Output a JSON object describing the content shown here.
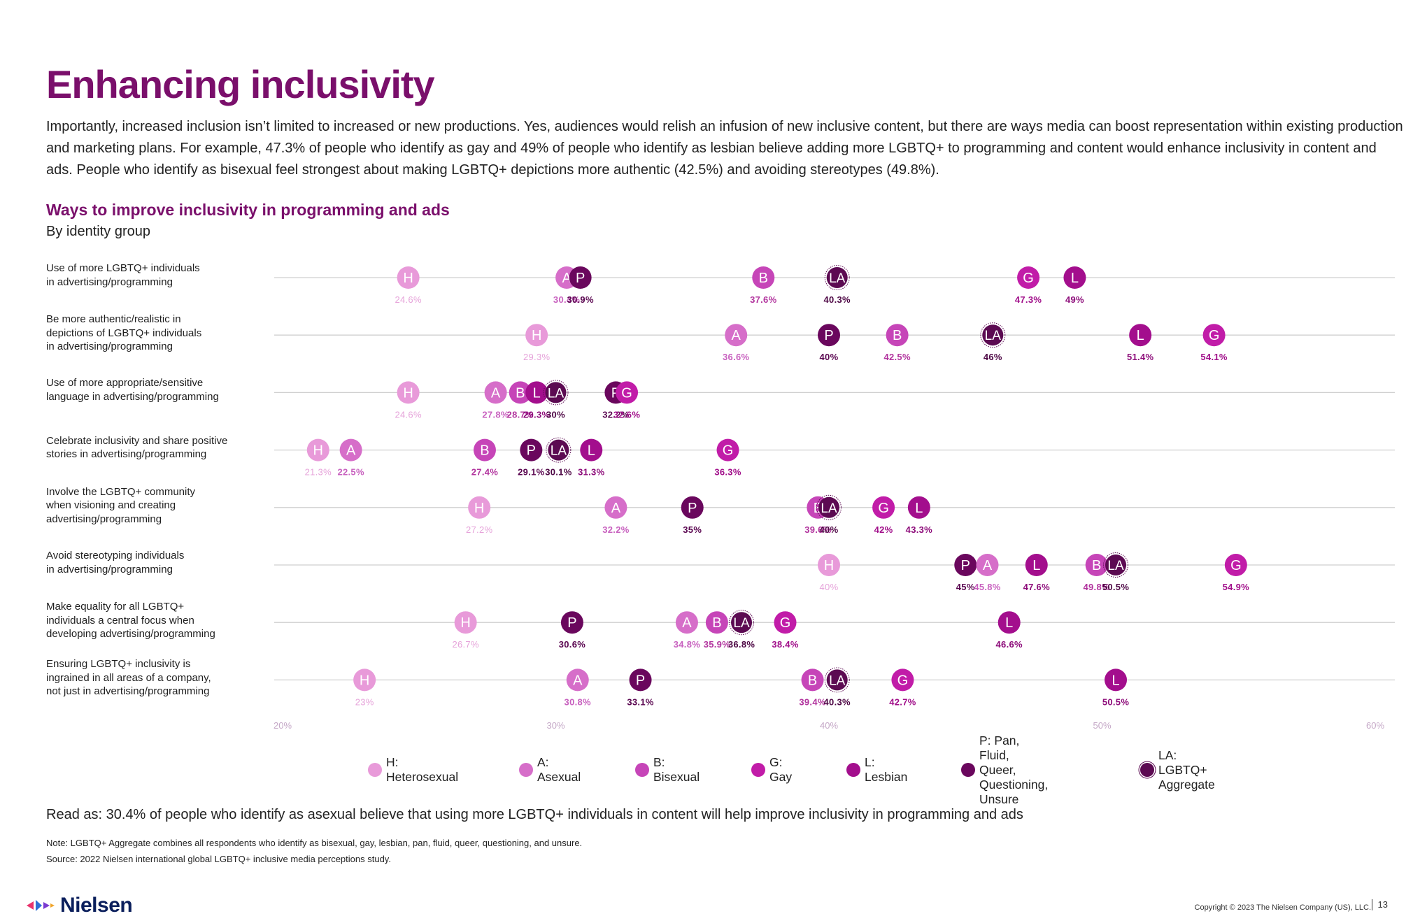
{
  "title": "Enhancing inclusivity",
  "intro": "Importantly, increased inclusion isn’t limited to increased or new productions. Yes, audiences would relish an infusion of new inclusive content, but there are ways media can boost representation within existing production and marketing plans. For example, 47.3% of people who identify as gay and 49% of people who identify as lesbian believe adding more LGBTQ+ to programming and content would enhance inclusivity in content and ads. People who identify as bisexual feel strongest about making LGBTQ+ depictions more authentic (42.5%) and avoiding stereotypes (49.8%).",
  "chart_title": "Ways to improve inclusivity in programming and ads",
  "chart_subtitle": "By identity group",
  "chart_data": {
    "type": "scatter",
    "title": "Ways to improve inclusivity in programming and ads",
    "subtitle": "By identity group",
    "xlim": [
      20,
      60
    ],
    "x_ticks": [
      "20%",
      "30%",
      "40%",
      "50%",
      "60%"
    ],
    "x_tick_values": [
      20,
      30,
      40,
      50,
      60
    ],
    "groups": [
      {
        "code": "H",
        "name": "Heterosexual",
        "legend": "H: Heterosexual",
        "color": "#e89ad9",
        "text": "#e6a3da"
      },
      {
        "code": "A",
        "name": "Asexual",
        "legend": "A: Asexual",
        "color": "#d66ec9",
        "text": "#c861bf"
      },
      {
        "code": "B",
        "name": "Bisexual",
        "legend": "B: Bisexual",
        "color": "#c645b8",
        "text": "#b2349e"
      },
      {
        "code": "G",
        "name": "Gay",
        "legend": "G: Gay",
        "color": "#c11ca8",
        "text": "#a10f8a"
      },
      {
        "code": "L",
        "name": "Lesbian",
        "legend": "L: Lesbian",
        "color": "#a30e8d",
        "text": "#8d0c7a"
      },
      {
        "code": "P",
        "name": "Pan, Fluid, Queer, Questioning, Unsure",
        "legend": "P: Pan, Fluid, Queer,\nQuestioning, Unsure",
        "color": "#6a075d",
        "text": "#5a0650"
      },
      {
        "code": "LA",
        "name": "LGBTQ+ Aggregate",
        "legend": "LA: LGBTQ+ Aggregate",
        "color": "#5c0a52",
        "text": "#4e0845"
      }
    ],
    "rows": [
      {
        "label": "Use of more LGBTQ+ individuals\nin advertising/programming",
        "points": [
          {
            "g": "H",
            "v": 24.6,
            "label": "24.6%"
          },
          {
            "g": "A",
            "v": 30.4,
            "label": "30.4%"
          },
          {
            "g": "P",
            "v": 30.9,
            "label": "30.9%"
          },
          {
            "g": "B",
            "v": 37.6,
            "label": "37.6%"
          },
          {
            "g": "LA",
            "v": 40.3,
            "label": "40.3%"
          },
          {
            "g": "G",
            "v": 47.3,
            "label": "47.3%"
          },
          {
            "g": "L",
            "v": 49.0,
            "label": "49%"
          }
        ]
      },
      {
        "label": "Be more authentic/realistic in\ndepictions of LGBTQ+ individuals\nin advertising/programming",
        "points": [
          {
            "g": "H",
            "v": 29.3,
            "label": "29.3%"
          },
          {
            "g": "A",
            "v": 36.6,
            "label": "36.6%"
          },
          {
            "g": "P",
            "v": 40.0,
            "label": "40%"
          },
          {
            "g": "B",
            "v": 42.5,
            "label": "42.5%"
          },
          {
            "g": "LA",
            "v": 46.0,
            "label": "46%"
          },
          {
            "g": "L",
            "v": 51.4,
            "label": "51.4%"
          },
          {
            "g": "G",
            "v": 54.1,
            "label": "54.1%"
          }
        ]
      },
      {
        "label": "Use of more appropriate/sensitive\nlanguage in advertising/programming",
        "points": [
          {
            "g": "H",
            "v": 24.6,
            "label": "24.6%"
          },
          {
            "g": "A",
            "v": 27.8,
            "label": "27.8%"
          },
          {
            "g": "B",
            "v": 28.7,
            "label": "28.7%"
          },
          {
            "g": "L",
            "v": 29.3,
            "label": "29.3%"
          },
          {
            "g": "LA",
            "v": 30.0,
            "label": "30%"
          },
          {
            "g": "P",
            "v": 32.2,
            "label": "32.2%"
          },
          {
            "g": "G",
            "v": 32.6,
            "label": "32.6%"
          }
        ]
      },
      {
        "label": "Celebrate inclusivity and share positive\nstories in advertising/programming",
        "points": [
          {
            "g": "H",
            "v": 21.3,
            "label": "21.3%"
          },
          {
            "g": "A",
            "v": 22.5,
            "label": "22.5%"
          },
          {
            "g": "B",
            "v": 27.4,
            "label": "27.4%"
          },
          {
            "g": "P",
            "v": 29.1,
            "label": "29.1%"
          },
          {
            "g": "LA",
            "v": 30.1,
            "label": "30.1%"
          },
          {
            "g": "L",
            "v": 31.3,
            "label": "31.3%"
          },
          {
            "g": "G",
            "v": 36.3,
            "label": "36.3%"
          }
        ]
      },
      {
        "label": "Involve the LGBTQ+ community\nwhen visioning and creating\nadvertising/programming",
        "points": [
          {
            "g": "H",
            "v": 27.2,
            "label": "27.2%"
          },
          {
            "g": "A",
            "v": 32.2,
            "label": "32.2%"
          },
          {
            "g": "P",
            "v": 35.0,
            "label": "35%"
          },
          {
            "g": "B",
            "v": 39.6,
            "label": "39.6%"
          },
          {
            "g": "LA",
            "v": 40.0,
            "label": "40%"
          },
          {
            "g": "G",
            "v": 42.0,
            "label": "42%"
          },
          {
            "g": "L",
            "v": 43.3,
            "label": "43.3%"
          }
        ]
      },
      {
        "label": "Avoid stereotyping individuals\nin advertising/programming",
        "points": [
          {
            "g": "H",
            "v": 40.0,
            "label": "40%"
          },
          {
            "g": "P",
            "v": 45.0,
            "label": "45%"
          },
          {
            "g": "A",
            "v": 45.8,
            "label": "45.8%"
          },
          {
            "g": "L",
            "v": 47.6,
            "label": "47.6%"
          },
          {
            "g": "B",
            "v": 49.8,
            "label": "49.8%"
          },
          {
            "g": "LA",
            "v": 50.5,
            "label": "50.5%"
          },
          {
            "g": "G",
            "v": 54.9,
            "label": "54.9%"
          }
        ]
      },
      {
        "label": "Make equality for all LGBTQ+\nindividuals a central focus when\ndeveloping advertising/programming",
        "points": [
          {
            "g": "H",
            "v": 26.7,
            "label": "26.7%"
          },
          {
            "g": "P",
            "v": 30.6,
            "label": "30.6%"
          },
          {
            "g": "A",
            "v": 34.8,
            "label": "34.8%"
          },
          {
            "g": "B",
            "v": 35.9,
            "label": "35.9%"
          },
          {
            "g": "LA",
            "v": 36.8,
            "label": "36.8%"
          },
          {
            "g": "G",
            "v": 38.4,
            "label": "38.4%"
          },
          {
            "g": "L",
            "v": 46.6,
            "label": "46.6%"
          }
        ]
      },
      {
        "label": "Ensuring LGBTQ+ inclusivity is\ningrained in all areas of a company,\nnot just in advertising/programming",
        "points": [
          {
            "g": "H",
            "v": 23.0,
            "label": "23%"
          },
          {
            "g": "A",
            "v": 30.8,
            "label": "30.8%"
          },
          {
            "g": "P",
            "v": 33.1,
            "label": "33.1%"
          },
          {
            "g": "B",
            "v": 39.4,
            "label": "39.4%"
          },
          {
            "g": "LA",
            "v": 40.3,
            "label": "40.3%"
          },
          {
            "g": "G",
            "v": 42.7,
            "label": "42.7%"
          },
          {
            "g": "L",
            "v": 50.5,
            "label": "50.5%"
          }
        ]
      }
    ]
  },
  "read_as": "Read as: 30.4% of people who identify as asexual believe that using more LGBTQ+ individuals in content will help improve inclusivity in programming and ads",
  "note": "Note: LGBTQ+ Aggregate combines all respondents who identify as bisexual, gay, lesbian, pan, fluid, queer, questioning, and unsure.",
  "source": "Source: 2022 Nielsen international global LGBTQ+ inclusive media perceptions study.",
  "brand": "Nielsen",
  "copyright": "Copyright © 2023 The Nielsen Company (US), LLC.",
  "page_number": "13"
}
